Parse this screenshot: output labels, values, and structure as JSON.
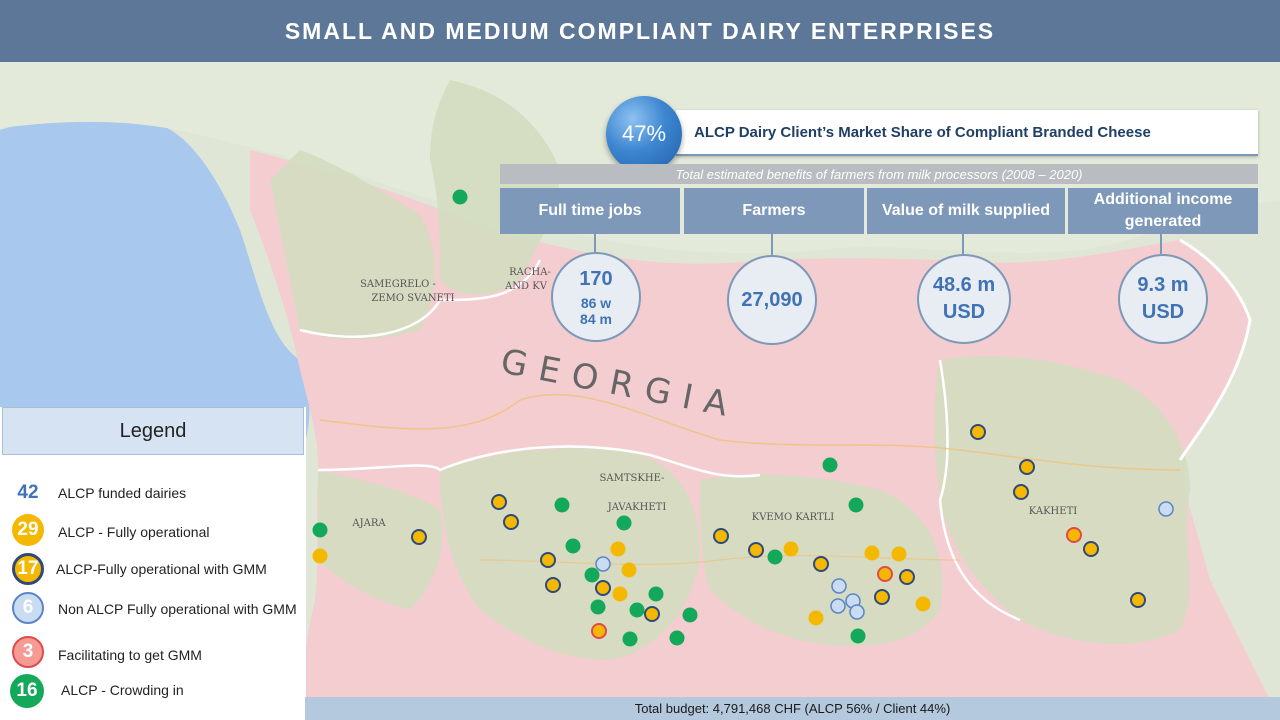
{
  "header": {
    "title": "SMALL AND MEDIUM COMPLIANT DAIRY ENTERPRISES"
  },
  "market_share": {
    "value": "47%",
    "label": "ALCP Dairy Client’s Market Share of Compliant Branded Cheese"
  },
  "benefits_subtitle": "Total estimated benefits of farmers from milk processors (2008 – 2020)",
  "stats": [
    {
      "header": "Full time jobs",
      "value": "170",
      "sub1": "86 w",
      "sub2": "84 m"
    },
    {
      "header": "Farmers",
      "value": "27,090"
    },
    {
      "header": "Value of milk supplied",
      "value": "48.6 m",
      "unit": "USD"
    },
    {
      "header": "Additional income generated",
      "value": "9.3 m",
      "unit": "USD"
    }
  ],
  "map": {
    "country_label": "GEORGIA",
    "regions": [
      "SAMEGRELO -",
      "ZEMO SVANETI",
      "RACHA-",
      "AND KV",
      "SAMTSKHE-",
      "JAVAKHETI",
      "AJARA",
      "KVEMO KARTLI",
      "KAKHETI"
    ],
    "colors": {
      "sea": "#a8c8ee",
      "georgia": "#f3cdd0",
      "highlight": "#d3ddc0",
      "border": "#ffffff"
    }
  },
  "legend": {
    "title": "Legend",
    "items": [
      {
        "count": "42",
        "label": "ALCP funded dairies",
        "style": "plain",
        "color": "#3f73b6"
      },
      {
        "count": "29",
        "label": "ALCP - Fully operational",
        "style": "filled",
        "color": "#f5b800"
      },
      {
        "count": "17",
        "label": "ALCP-Fully operational with GMM",
        "style": "ringed",
        "color": "#f5b800",
        "ring": "#2d4a7a"
      },
      {
        "count": "6",
        "label": "Non ALCP Fully operational with GMM",
        "style": "ringed",
        "color": "#c9dcf2",
        "ring": "#5b86c4"
      },
      {
        "count": "3",
        "label": "Facilitating to get GMM",
        "style": "ringed",
        "color": "#f59b95",
        "ring": "#e04a4a"
      },
      {
        "count": "16",
        "label": "ALCP - Crowding in",
        "style": "filled",
        "color": "#14a85a"
      }
    ]
  },
  "footer": {
    "budget": "Total budget: 4,791,468 CHF (ALCP 56% / Client 44%)"
  }
}
